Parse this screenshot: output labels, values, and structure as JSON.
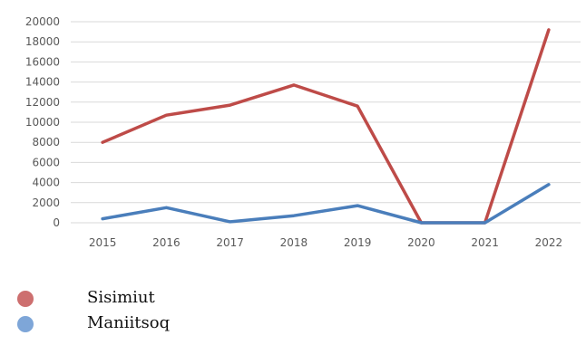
{
  "chart_data": {
    "type": "line",
    "x": [
      "2015",
      "2016",
      "2017",
      "2018",
      "2019",
      "2020",
      "2021",
      "2022"
    ],
    "series": [
      {
        "name": "Sisimiut",
        "color": "#be4b48",
        "legend_color": "#cd6f6f",
        "values": [
          8000,
          10700,
          11700,
          13700,
          11600,
          0,
          0,
          19200
        ]
      },
      {
        "name": "Maniitsoq",
        "color": "#4a7ebb",
        "legend_color": "#7ea6d8",
        "values": [
          400,
          1500,
          100,
          700,
          1700,
          0,
          0,
          3800
        ]
      }
    ],
    "ylim": [
      0,
      20000
    ],
    "yticks": [
      "0",
      "2000",
      "4000",
      "6000",
      "8000",
      "10000",
      "12000",
      "14000",
      "16000",
      "18000",
      "20000"
    ],
    "xlabel": "",
    "ylabel": "",
    "title": "",
    "grid": true,
    "legend_position": "bottom-left"
  }
}
